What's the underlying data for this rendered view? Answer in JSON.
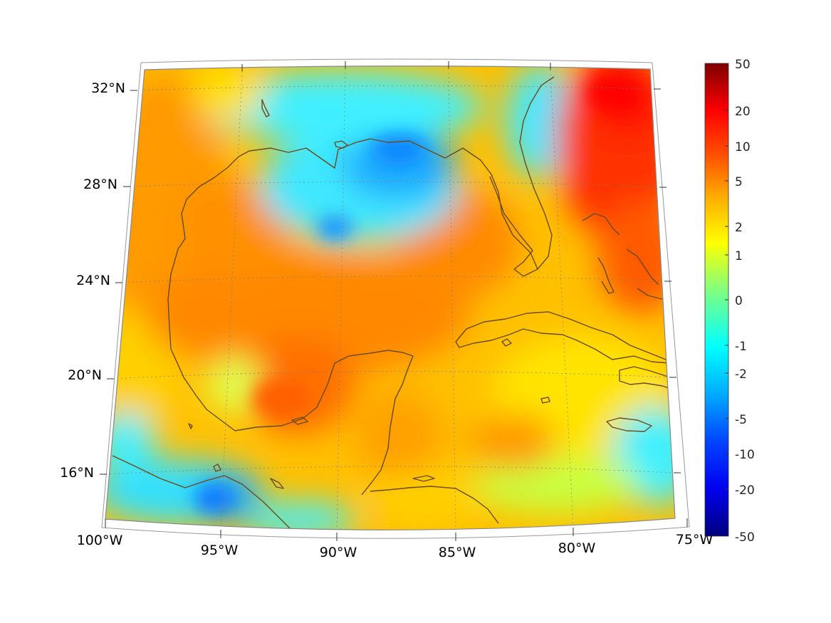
{
  "map": {
    "projection": "lambert-conformal-conic",
    "latitude_labels": [
      "32°N",
      "28°N",
      "24°N",
      "20°N",
      "16°N"
    ],
    "longitude_labels": [
      "100°W",
      "95°W",
      "90°W",
      "85°W",
      "80°W",
      "75°W"
    ],
    "grid": "dotted",
    "coastline_color": "#6b4a1e"
  },
  "colorbar": {
    "ticks": [
      "50",
      "20",
      "10",
      "5",
      "2",
      "1",
      "0",
      "-1",
      "-2",
      "-5",
      "-10",
      "-20",
      "-50"
    ],
    "colormap": "jet",
    "scale": "symmetric-log",
    "range": [
      -50,
      50
    ]
  },
  "regions": {
    "northern_gulf_shelf": "cyan-blue (-1 to -5)",
    "central_western_gulf": "orange (2 to 5)",
    "atlantic_east_of_florida": "red (10 to 20)",
    "caribbean": "yellow-green (0 to 2)",
    "eastern_pacific_south_of_mexico": "cyan (-1 to -2)"
  }
}
